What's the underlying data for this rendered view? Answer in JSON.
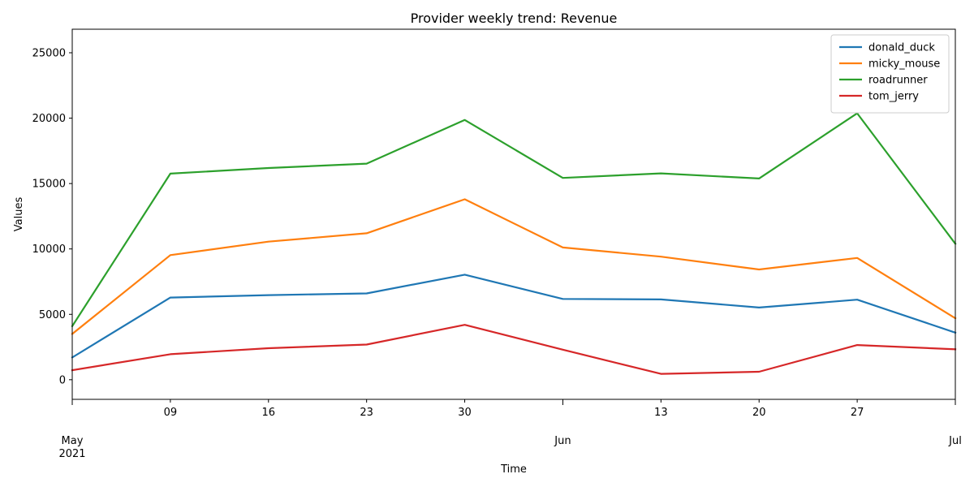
{
  "colors": {
    "donald_duck": "#1f77b4",
    "micky_mouse": "#ff7f0e",
    "roadrunner": "#2ca02c",
    "tom_jerry": "#d62728"
  },
  "chart_data": {
    "type": "line",
    "title": "Provider weekly trend: Revenue",
    "xlabel": "Time",
    "ylabel": "Values",
    "x": [
      "2021-05-02",
      "2021-05-09",
      "2021-05-16",
      "2021-05-23",
      "2021-05-30",
      "2021-06-06",
      "2021-06-13",
      "2021-06-20",
      "2021-06-27",
      "2021-07-04"
    ],
    "xlim": [
      "2021-05-02",
      "2021-07-04"
    ],
    "ylim": [
      -1500,
      26800
    ],
    "x_ticks": [
      {
        "date": "2021-05-02",
        "label": "",
        "major": true
      },
      {
        "date": "2021-05-09",
        "label": "09",
        "major": false
      },
      {
        "date": "2021-05-16",
        "label": "16",
        "major": false
      },
      {
        "date": "2021-05-23",
        "label": "23",
        "major": false
      },
      {
        "date": "2021-05-30",
        "label": "30",
        "major": false
      },
      {
        "date": "2021-06-06",
        "label": "",
        "major": true
      },
      {
        "date": "2021-06-13",
        "label": "13",
        "major": false
      },
      {
        "date": "2021-06-20",
        "label": "20",
        "major": false
      },
      {
        "date": "2021-06-27",
        "label": "27",
        "major": false
      },
      {
        "date": "2021-07-04",
        "label": "",
        "major": true
      }
    ],
    "x_month_labels": [
      {
        "date": "2021-05-02",
        "lines": [
          "May",
          "2021"
        ]
      },
      {
        "date": "2021-06-06",
        "lines": [
          "Jun"
        ]
      },
      {
        "date": "2021-07-04",
        "lines": [
          "Jul"
        ]
      }
    ],
    "y_ticks": [
      0,
      5000,
      10000,
      15000,
      20000,
      25000
    ],
    "grid": false,
    "legend": "top-right",
    "series": [
      {
        "name": "donald_duck",
        "values": [
          1700,
          6280,
          6470,
          6600,
          8030,
          6180,
          6140,
          5520,
          6120,
          3600
        ]
      },
      {
        "name": "micky_mouse",
        "values": [
          3500,
          9530,
          10560,
          11200,
          13800,
          10110,
          9410,
          8430,
          9310,
          4700
        ]
      },
      {
        "name": "roadrunner",
        "values": [
          4100,
          15760,
          16190,
          16520,
          19860,
          15430,
          15780,
          15390,
          20370,
          10400
        ]
      },
      {
        "name": "tom_jerry",
        "values": [
          730,
          1950,
          2410,
          2690,
          4200,
          2300,
          450,
          610,
          2650,
          2330
        ]
      }
    ]
  }
}
